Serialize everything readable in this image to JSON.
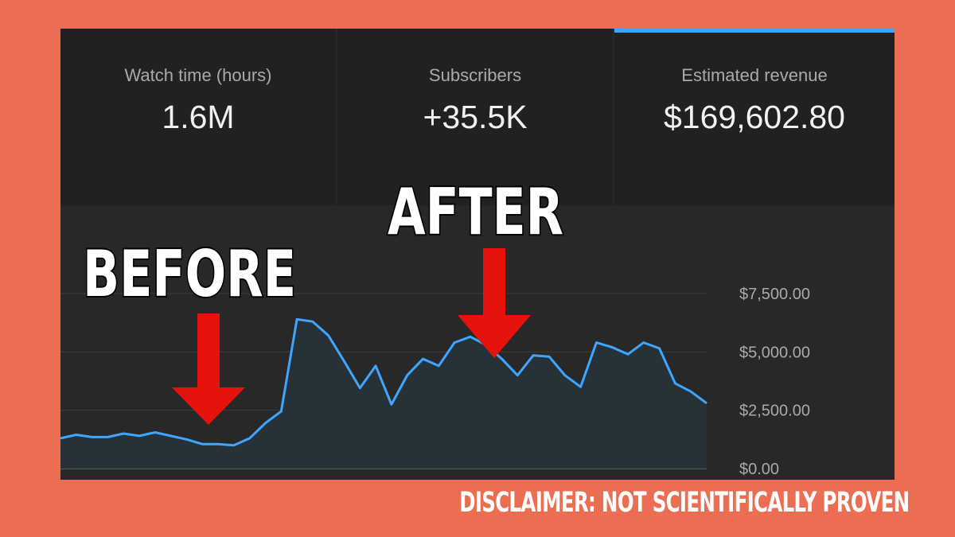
{
  "cards": [
    {
      "label": "Watch time (hours)",
      "value": "1.6M"
    },
    {
      "label": "Subscribers",
      "value": "+35.5K"
    },
    {
      "label": "Estimated revenue",
      "value": "$169,602.80",
      "selected": true
    }
  ],
  "chart_data": {
    "type": "area",
    "ylim": [
      0,
      7500
    ],
    "y_tick_labels": [
      "$7,500.00",
      "$5,000.00",
      "$2,500.00",
      "$0.00"
    ],
    "y_ticks": [
      7500,
      5000,
      2500,
      0
    ],
    "grid": true,
    "values": [
      1300,
      1450,
      1350,
      1350,
      1500,
      1400,
      1550,
      1400,
      1250,
      1050,
      1050,
      1000,
      1300,
      1950,
      2450,
      6400,
      6300,
      5700,
      4600,
      3450,
      4400,
      2750,
      4000,
      4700,
      4400,
      5400,
      5650,
      5300,
      4700,
      4000,
      4850,
      4800,
      4000,
      3500,
      5400,
      5200,
      4900,
      5400,
      5150,
      3650,
      3300,
      2800
    ],
    "annotations": [
      {
        "text": "BEFORE"
      },
      {
        "text": "AFTER"
      }
    ]
  },
  "colors": {
    "background": "#EC6E52",
    "panel": "#282828",
    "card": "#212121",
    "accent": "#3EA6FF",
    "line": "#3EA6FF",
    "area": "#263238",
    "arrow": "#E8120C"
  },
  "disclaimer": "DISCLAIMER: NOT SCIENTIFICALLY PROVEN"
}
